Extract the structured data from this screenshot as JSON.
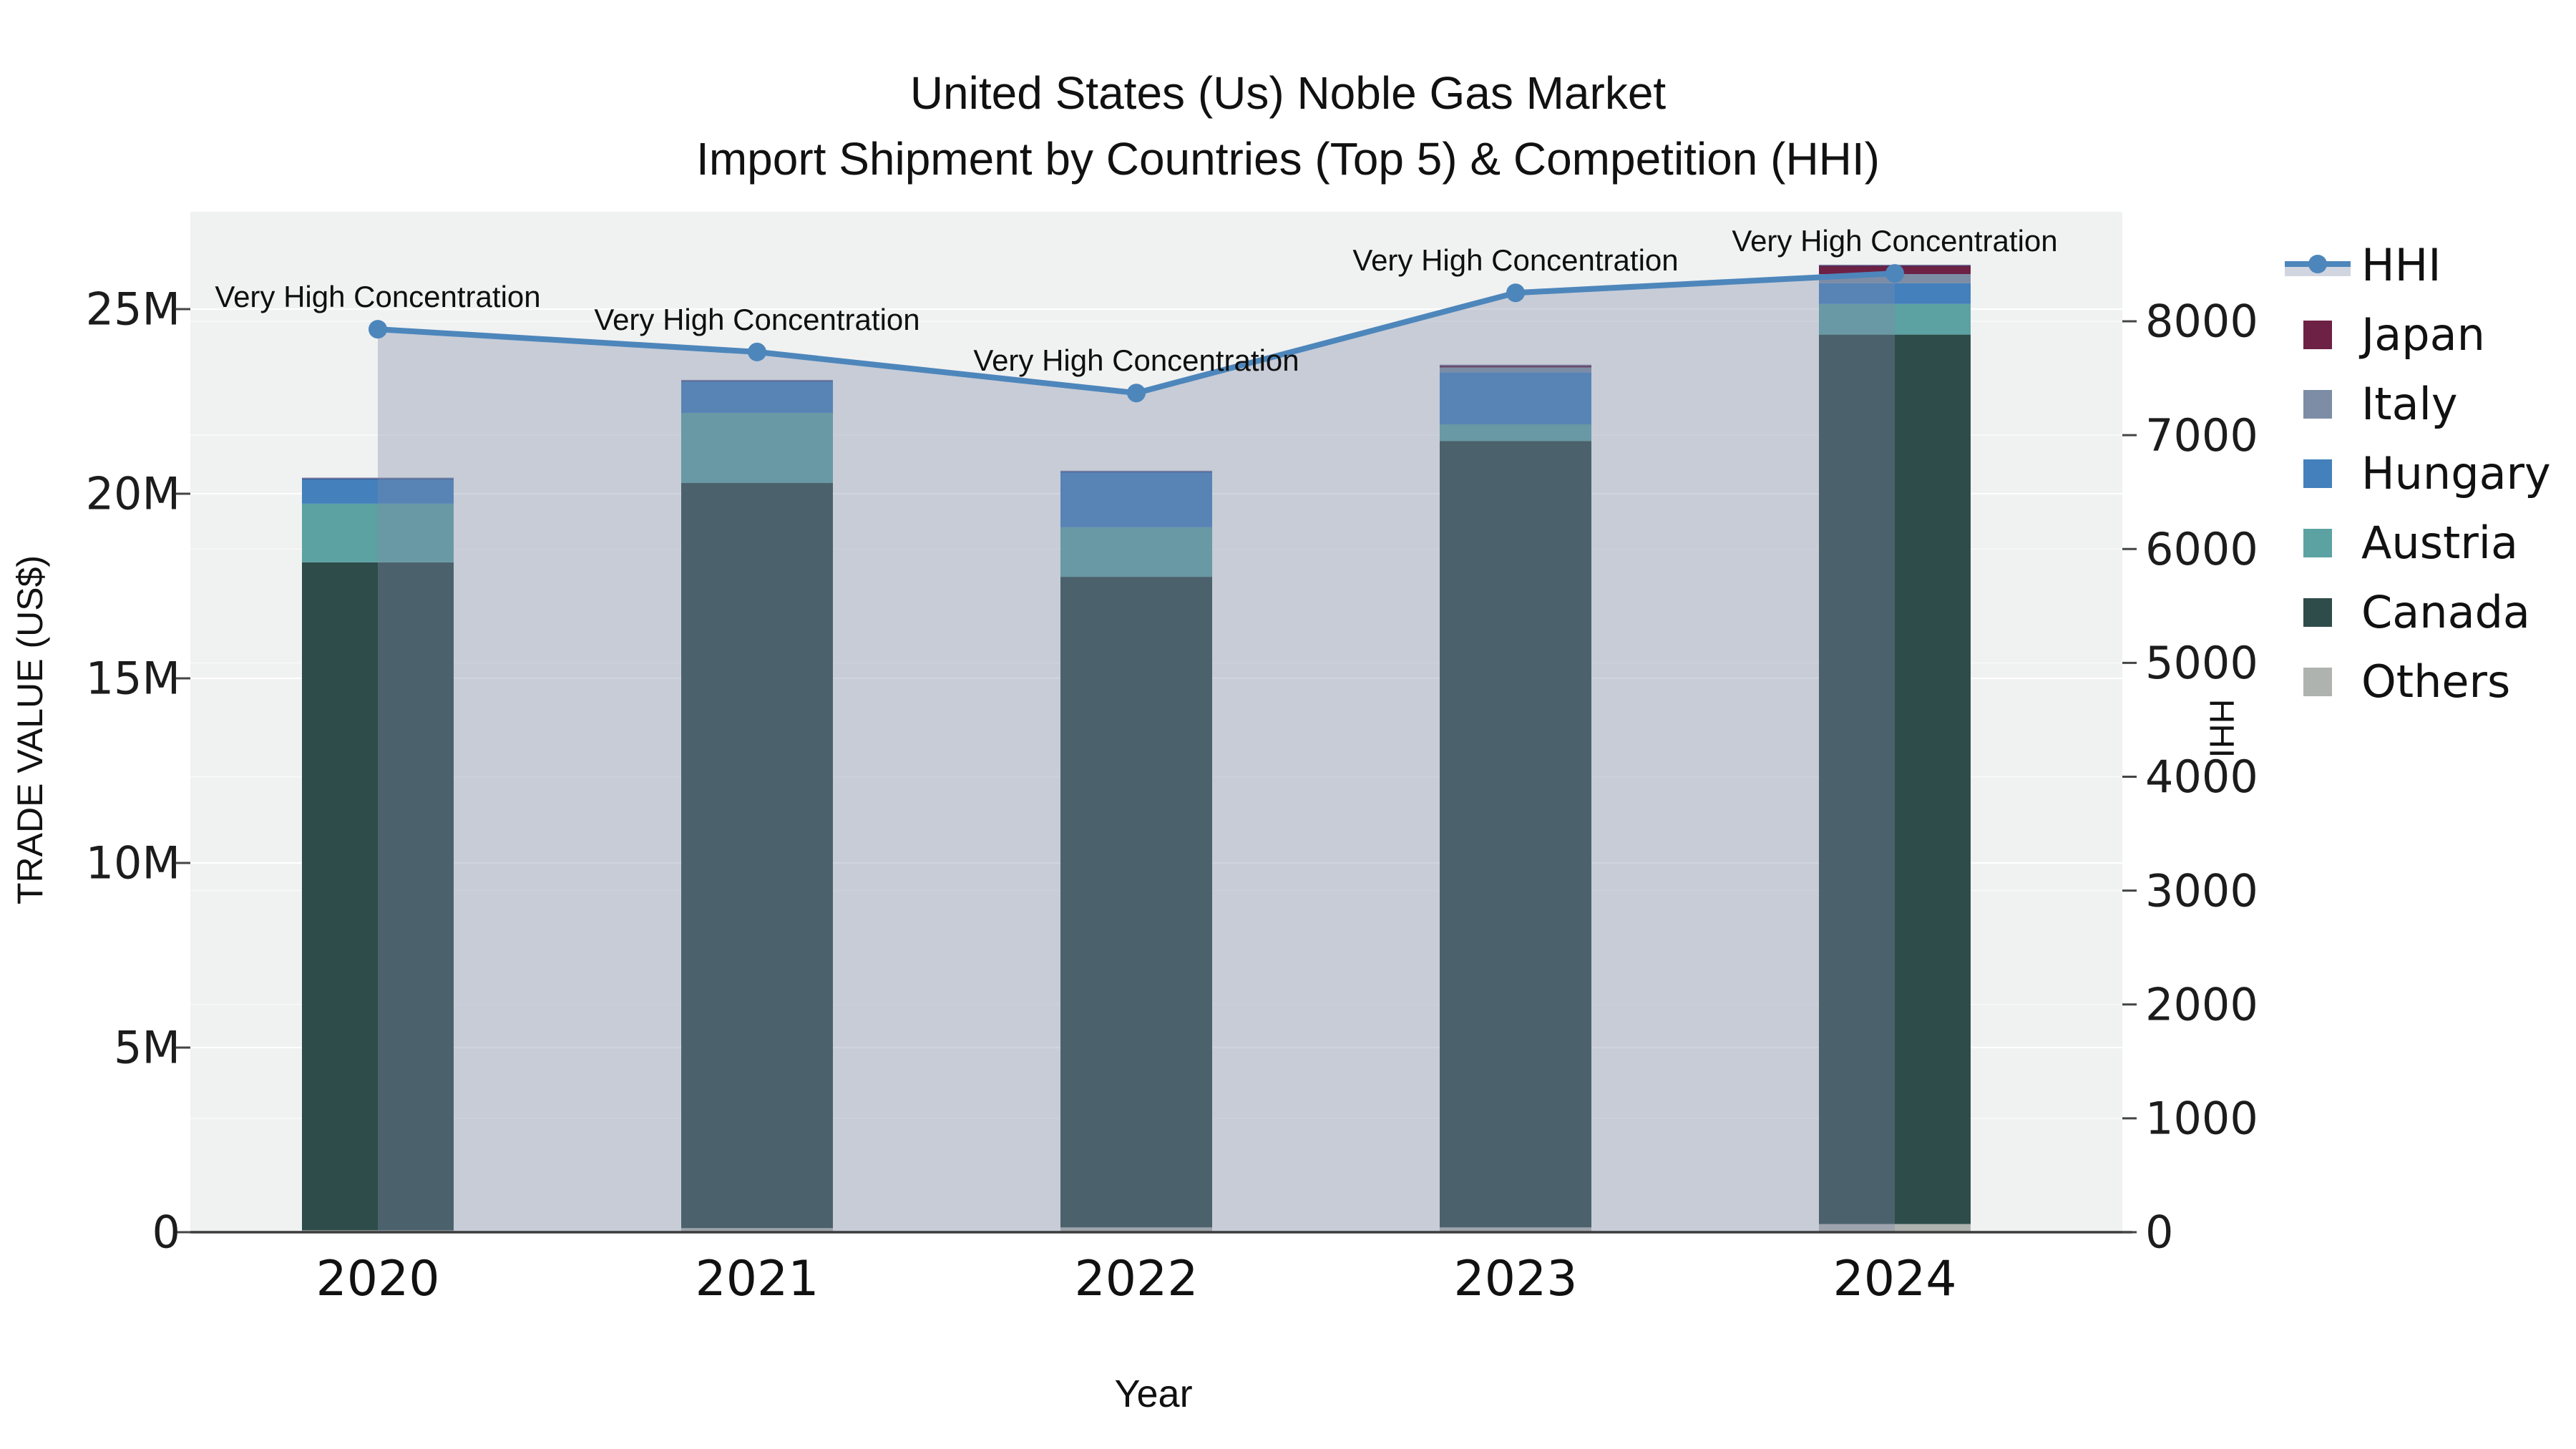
{
  "title": {
    "line1": "United States (Us) Noble Gas Market",
    "line2": "Import Shipment by Countries (Top 5) & Competition (HHI)"
  },
  "axis_left": {
    "title": "TRADE VALUE (US$)",
    "tick_labels": [
      "0",
      "5M",
      "10M",
      "15M",
      "20M",
      "25M"
    ],
    "tick_values": [
      0,
      5,
      10,
      15,
      20,
      25
    ]
  },
  "axis_right": {
    "title": "HHI",
    "tick_labels": [
      "0",
      "1000",
      "2000",
      "3000",
      "4000",
      "5000",
      "6000",
      "7000",
      "8000"
    ],
    "tick_values": [
      0,
      1000,
      2000,
      3000,
      4000,
      5000,
      6000,
      7000,
      8000
    ]
  },
  "axis_x": {
    "title": "Year",
    "categories": [
      "2020",
      "2021",
      "2022",
      "2023",
      "2024"
    ]
  },
  "legend": {
    "items": [
      {
        "key": "hhi",
        "label": "HHI",
        "type": "line",
        "color": "#4D86BB"
      },
      {
        "key": "japan",
        "label": "Japan",
        "type": "swatch",
        "color": "#6D2144"
      },
      {
        "key": "italy",
        "label": "Italy",
        "type": "swatch",
        "color": "#7C8DA5"
      },
      {
        "key": "hungary",
        "label": "Hungary",
        "type": "swatch",
        "color": "#4380BC"
      },
      {
        "key": "austria",
        "label": "Austria",
        "type": "swatch",
        "color": "#5CA2A2"
      },
      {
        "key": "canada",
        "label": "Canada",
        "type": "swatch",
        "color": "#2E4C4A"
      },
      {
        "key": "others",
        "label": "Others",
        "type": "swatch",
        "color": "#AFB3AF"
      }
    ]
  },
  "chart_data": {
    "type": "bar+line",
    "title": "United States (Us) Noble Gas Market — Import Shipment by Countries (Top 5) & Competition (HHI)",
    "categories": [
      "2020",
      "2021",
      "2022",
      "2023",
      "2024"
    ],
    "xlabel": "Year",
    "ylabel_left": "TRADE VALUE (US$)",
    "ylabel_right": "HHI",
    "bar_unit": "million US$",
    "stack_order": "bottom-to-top",
    "series": [
      {
        "name": "Others",
        "color": "#AFB3AF",
        "values": [
          0.05,
          0.11,
          0.13,
          0.13,
          0.22
        ]
      },
      {
        "name": "Canada",
        "color": "#2E4C4A",
        "values": [
          18.09,
          20.18,
          17.62,
          21.3,
          24.09
        ]
      },
      {
        "name": "Austria",
        "color": "#5CA2A2",
        "values": [
          1.59,
          1.9,
          1.34,
          0.45,
          0.83
        ]
      },
      {
        "name": "Hungary",
        "color": "#4380BC",
        "values": [
          0.68,
          0.87,
          1.51,
          1.41,
          0.56
        ]
      },
      {
        "name": "Italy",
        "color": "#7C8DA5",
        "values": [
          0,
          0,
          0,
          0.13,
          0.25
        ]
      },
      {
        "name": "Japan",
        "color": "#6D2144",
        "values": [
          0,
          0,
          0,
          0.05,
          0.23
        ]
      }
    ],
    "totals": [
      20.41,
      23.06,
      20.6,
      23.47,
      26.18
    ],
    "line": {
      "name": "HHI",
      "color": "#4D86BB",
      "fill_color": "rgba(127,139,168,0.36)",
      "values": [
        7930,
        7730,
        7370,
        8250,
        8420
      ]
    },
    "annotations": [
      "Very High Concentration",
      "Very High Concentration",
      "Very High Concentration",
      "Very High Concentration",
      "Very High Concentration"
    ],
    "ylim_left": [
      0,
      27.6
    ],
    "ylim_right": [
      0,
      8960
    ],
    "plot_bg": "#F0F1F1",
    "grid": "on",
    "legend_position": "right"
  }
}
